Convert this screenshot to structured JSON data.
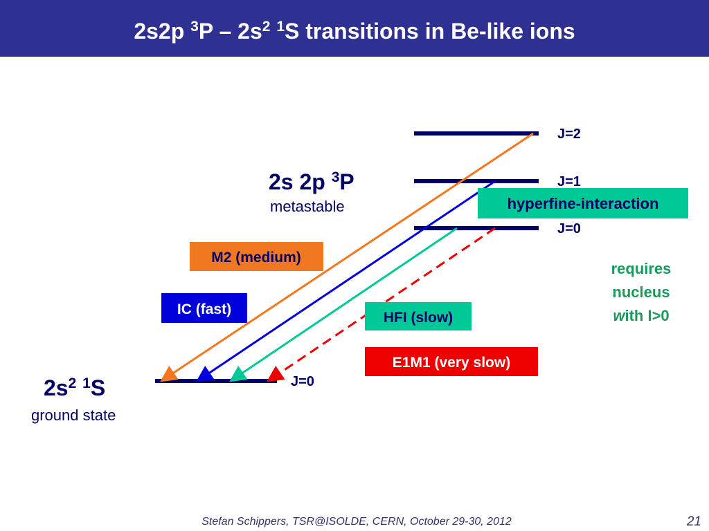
{
  "header": {
    "title": [
      "2s2p ",
      "3",
      "P – 2s",
      "2",
      " ",
      "1",
      "S transitions in Be-like ions"
    ]
  },
  "upper_state": {
    "label": [
      "2s 2p ",
      "3",
      "P"
    ],
    "note": "metastable",
    "levels": [
      "J=2",
      "J=1",
      "J=0"
    ]
  },
  "ground_state": {
    "label": [
      "2s",
      "2",
      " ",
      "1",
      "S"
    ],
    "note": "ground state",
    "level": "J=0"
  },
  "transitions": [
    "M2 (medium)",
    "IC (fast)",
    "HFI (slow)",
    "E1M1 (very slow)"
  ],
  "hyperfine": {
    "label": "hyperfine-interaction",
    "note": [
      "requires",
      "nucleus",
      "w",
      "ith I>0"
    ]
  },
  "footer": {
    "text": "Stefan Schippers, TSR@ISOLDE, CERN,  October 29-30,  2012",
    "page": "21"
  }
}
